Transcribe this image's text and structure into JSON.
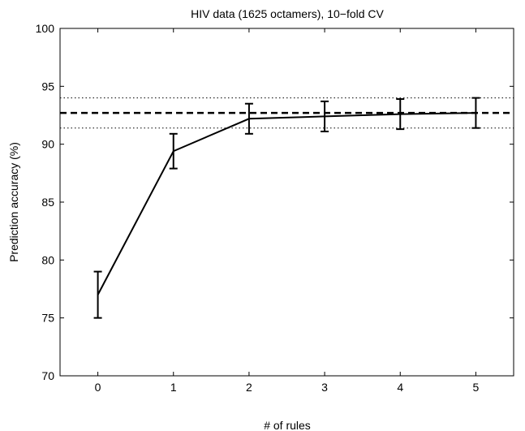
{
  "chart_data": {
    "type": "line",
    "title": "HIV data (1625 octamers), 10−fold CV",
    "xlabel": "# of rules",
    "ylabel": "Prediction accuracy (%)",
    "xlim": [
      -0.5,
      5.5
    ],
    "ylim": [
      70,
      100
    ],
    "xticks": [
      "0",
      "1",
      "2",
      "3",
      "4",
      "5"
    ],
    "yticks": [
      "70",
      "75",
      "80",
      "85",
      "90",
      "95",
      "100"
    ],
    "grid": false,
    "legend": "none",
    "series": [
      {
        "style": "solid-with-errorbars",
        "color": "#000000",
        "x": [
          0,
          1,
          2,
          3,
          4,
          5
        ],
        "y": [
          77.0,
          89.4,
          92.2,
          92.4,
          92.6,
          92.7
        ],
        "err_low": [
          75.0,
          87.9,
          90.9,
          91.1,
          91.3,
          91.4
        ],
        "err_high": [
          79.0,
          90.9,
          93.5,
          93.7,
          93.9,
          94.0
        ]
      }
    ],
    "reference_lines": [
      {
        "style": "dashed",
        "y": 92.7,
        "color": "#000000"
      },
      {
        "style": "dotted",
        "y": 94.0,
        "color": "#000000"
      },
      {
        "style": "dotted",
        "y": 91.4,
        "color": "#000000"
      }
    ]
  }
}
